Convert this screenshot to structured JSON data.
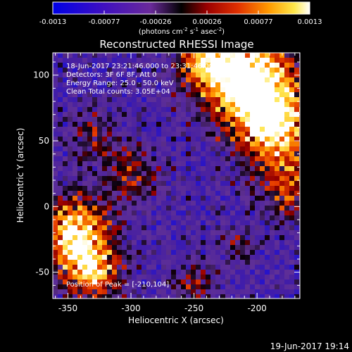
{
  "chart_data": {
    "type": "heatmap",
    "title": "Reconstructed RHESSI Image",
    "xlabel": "Heliocentric X (arcsec)",
    "ylabel": "Heliocentric Y (arcsec)",
    "xlim": [
      -362,
      -166
    ],
    "ylim": [
      -70,
      117
    ],
    "xticks": [
      -350,
      -300,
      -250,
      -200
    ],
    "yticks": [
      -50,
      0,
      50,
      100
    ],
    "colorbar": {
      "range": [
        -0.0013,
        0.0013
      ],
      "ticks": [
        "-0.0013",
        "-0.00077",
        "-0.00026",
        "0.00026",
        "0.00077",
        "0.0013"
      ],
      "unit_label": "(photons cm",
      "unit_sup1": "-2",
      "unit_mid1": " s",
      "unit_sup2": "-1",
      "unit_mid2": " asec",
      "unit_sup3": "-2",
      "unit_end": ")"
    },
    "annotations": [
      "18-Jun-2017 23:21:46.000 to 23:31:46.000",
      "Detectors: 3F 6F 8F, Att 0",
      "Energy Range: 25.0 - 50.0 keV",
      "Clean     Total counts: 3.05E+04"
    ],
    "peak_label": "Position of Peak = [-210,104]",
    "peak": [
      -210,
      104
    ],
    "grid": false,
    "colormap": "blue-purple-red-orange-yellow-white"
  },
  "footer": {
    "timestamp": "19-Jun-2017 19:14"
  }
}
